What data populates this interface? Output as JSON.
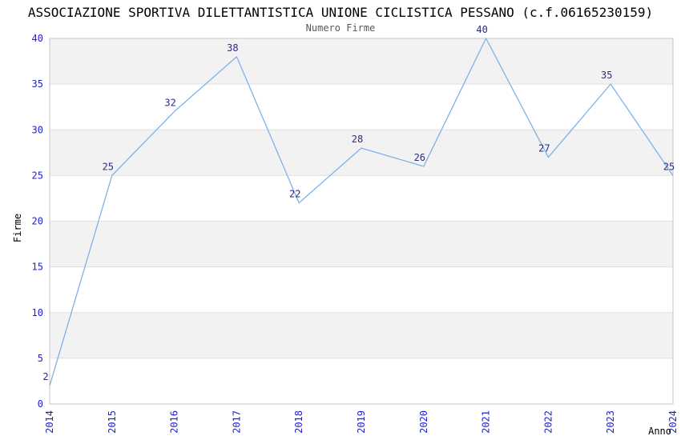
{
  "chart_data": {
    "type": "line",
    "title": "ASSOCIAZIONE SPORTIVA DILETTANTISTICA UNIONE CICLISTICA PESSANO (c.f.06165230159)",
    "subtitle": "Numero Firme",
    "xlabel": "Anno",
    "ylabel": "Firme",
    "x": [
      "2014",
      "2015",
      "2016",
      "2017",
      "2018",
      "2019",
      "2020",
      "2021",
      "2022",
      "2023",
      "2024"
    ],
    "values": [
      2,
      25,
      32,
      38,
      22,
      28,
      26,
      40,
      27,
      35,
      25
    ],
    "ylim": [
      0,
      40
    ],
    "yticks": [
      0,
      5,
      10,
      15,
      20,
      25,
      30,
      35,
      40
    ],
    "grid": "horizontal alternating bands, no vertical gridlines",
    "legend": "none",
    "point_labels_shown": true,
    "colors": {
      "line": "#7EB2E8",
      "tick_label": "#2222CC",
      "point_label": "#2B2B85",
      "band": "#F2F2F2",
      "gridline": "#E0E0E0",
      "border": "#C6C6C6",
      "title": "#000000",
      "subtitle": "#595959",
      "axis_label": "#000000",
      "background": "#FFFFFF"
    }
  }
}
